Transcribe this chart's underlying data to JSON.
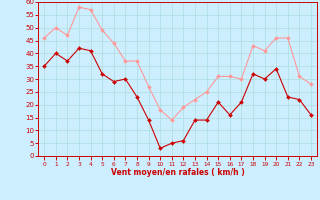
{
  "x": [
    0,
    1,
    2,
    3,
    4,
    5,
    6,
    7,
    8,
    9,
    10,
    11,
    12,
    13,
    14,
    15,
    16,
    17,
    18,
    19,
    20,
    21,
    22,
    23
  ],
  "rafales": [
    46,
    50,
    47,
    58,
    57,
    49,
    44,
    37,
    37,
    27,
    18,
    14,
    19,
    22,
    25,
    31,
    31,
    30,
    43,
    41,
    46,
    46,
    31,
    28
  ],
  "moyen": [
    35,
    40,
    37,
    42,
    41,
    32,
    29,
    30,
    23,
    14,
    3,
    5,
    6,
    14,
    14,
    21,
    16,
    21,
    32,
    30,
    34,
    23,
    22,
    16
  ],
  "bg_color": "#cceeff",
  "grid_color": "#aadddd",
  "line_color_moyen": "#cc0000",
  "line_color_rafales": "#ff9999",
  "xlabel": "Vent moyen/en rafales ( km/h )",
  "xlabel_color": "#cc0000",
  "tick_color": "#cc0000",
  "spine_color": "#cc0000",
  "ylim": [
    0,
    60
  ],
  "yticks": [
    0,
    5,
    10,
    15,
    20,
    25,
    30,
    35,
    40,
    45,
    50,
    55,
    60
  ],
  "xticks": [
    0,
    1,
    2,
    3,
    4,
    5,
    6,
    7,
    8,
    9,
    10,
    11,
    12,
    13,
    14,
    15,
    16,
    17,
    18,
    19,
    20,
    21,
    22,
    23
  ],
  "xtick_labels": [
    "0",
    "1",
    "2",
    "3",
    "4",
    "5",
    "6",
    "7",
    "8",
    "9",
    "10",
    "11",
    "12",
    "13",
    "14",
    "15",
    "16",
    "17",
    "18",
    "19",
    "20",
    "21",
    "22",
    "23"
  ]
}
